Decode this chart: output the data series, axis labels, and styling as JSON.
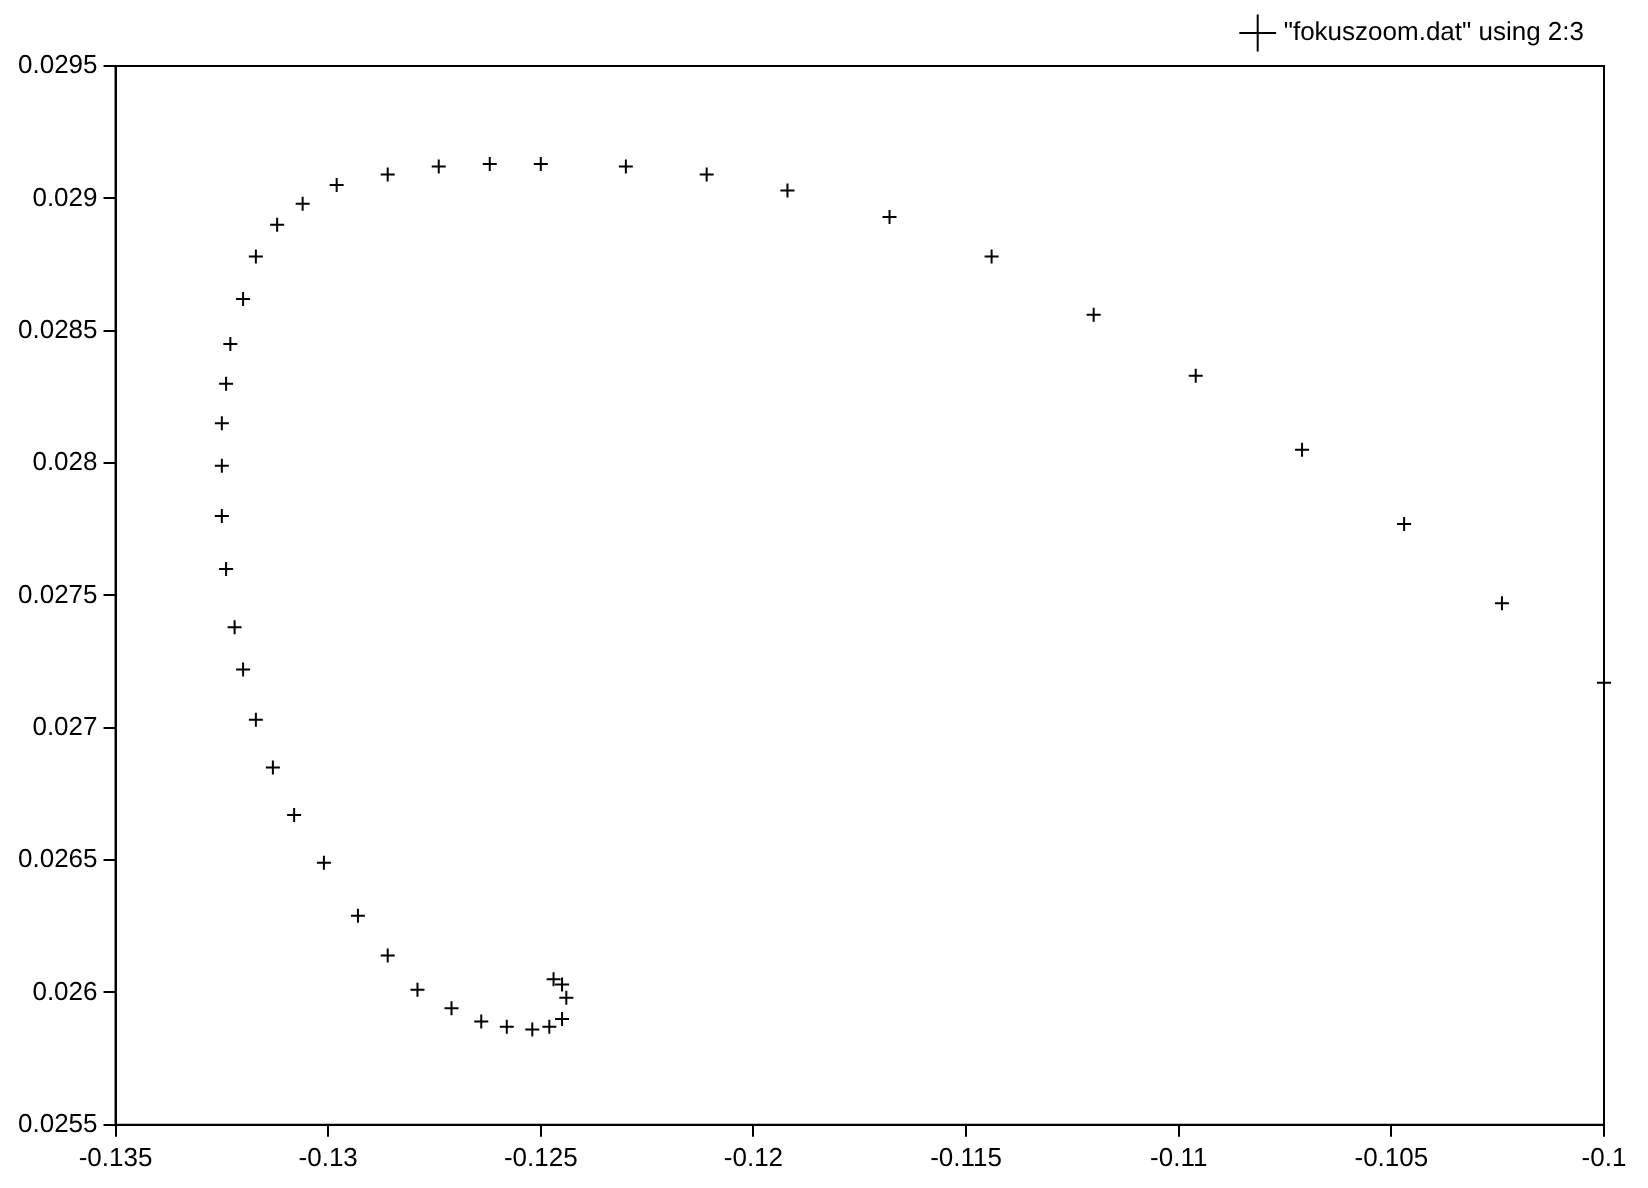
{
  "chart_data": {
    "type": "scatter",
    "marker": "cross",
    "legend": "top right",
    "grid": false,
    "xlim": [
      -0.135,
      -0.1
    ],
    "xticks": [
      -0.135,
      -0.13,
      -0.125,
      -0.12,
      -0.115,
      -0.11,
      -0.105,
      -0.1
    ],
    "ylim": [
      0.0255,
      0.0295
    ],
    "yticks": [
      0.0255,
      0.026,
      0.0265,
      0.027,
      0.0275,
      0.028,
      0.0285,
      0.029,
      0.0295
    ],
    "series": [
      {
        "name": "\"fokuszoom.dat\" using 2:3",
        "color": "#000000",
        "x": [
          -0.1,
          -0.1024,
          -0.1047,
          -0.1071,
          -0.1096,
          -0.112,
          -0.1144,
          -0.1168,
          -0.1192,
          -0.1211,
          -0.123,
          -0.125,
          -0.1262,
          -0.1274,
          -0.1286,
          -0.1298,
          -0.1306,
          -0.1312,
          -0.1317,
          -0.132,
          -0.1323,
          -0.1324,
          -0.1325,
          -0.1325,
          -0.1325,
          -0.1324,
          -0.1322,
          -0.132,
          -0.1317,
          -0.1313,
          -0.1308,
          -0.1301,
          -0.1293,
          -0.1286,
          -0.1279,
          -0.1271,
          -0.1264,
          -0.1258,
          -0.1252,
          -0.1248,
          -0.1245,
          -0.1244,
          -0.1245,
          -0.1247
        ],
        "values": [
          0.02717,
          0.02747,
          0.02777,
          0.02805,
          0.02833,
          0.02856,
          0.02878,
          0.02893,
          0.02903,
          0.02909,
          0.02912,
          0.02913,
          0.02913,
          0.02912,
          0.02909,
          0.02905,
          0.02898,
          0.0289,
          0.02878,
          0.02862,
          0.02845,
          0.0283,
          0.02815,
          0.02799,
          0.0278,
          0.0276,
          0.02738,
          0.02722,
          0.02703,
          0.02685,
          0.02667,
          0.02649,
          0.02629,
          0.02614,
          0.02601,
          0.02594,
          0.02589,
          0.02587,
          0.02586,
          0.02587,
          0.0259,
          0.02598,
          0.02603,
          0.02605
        ]
      }
    ]
  }
}
